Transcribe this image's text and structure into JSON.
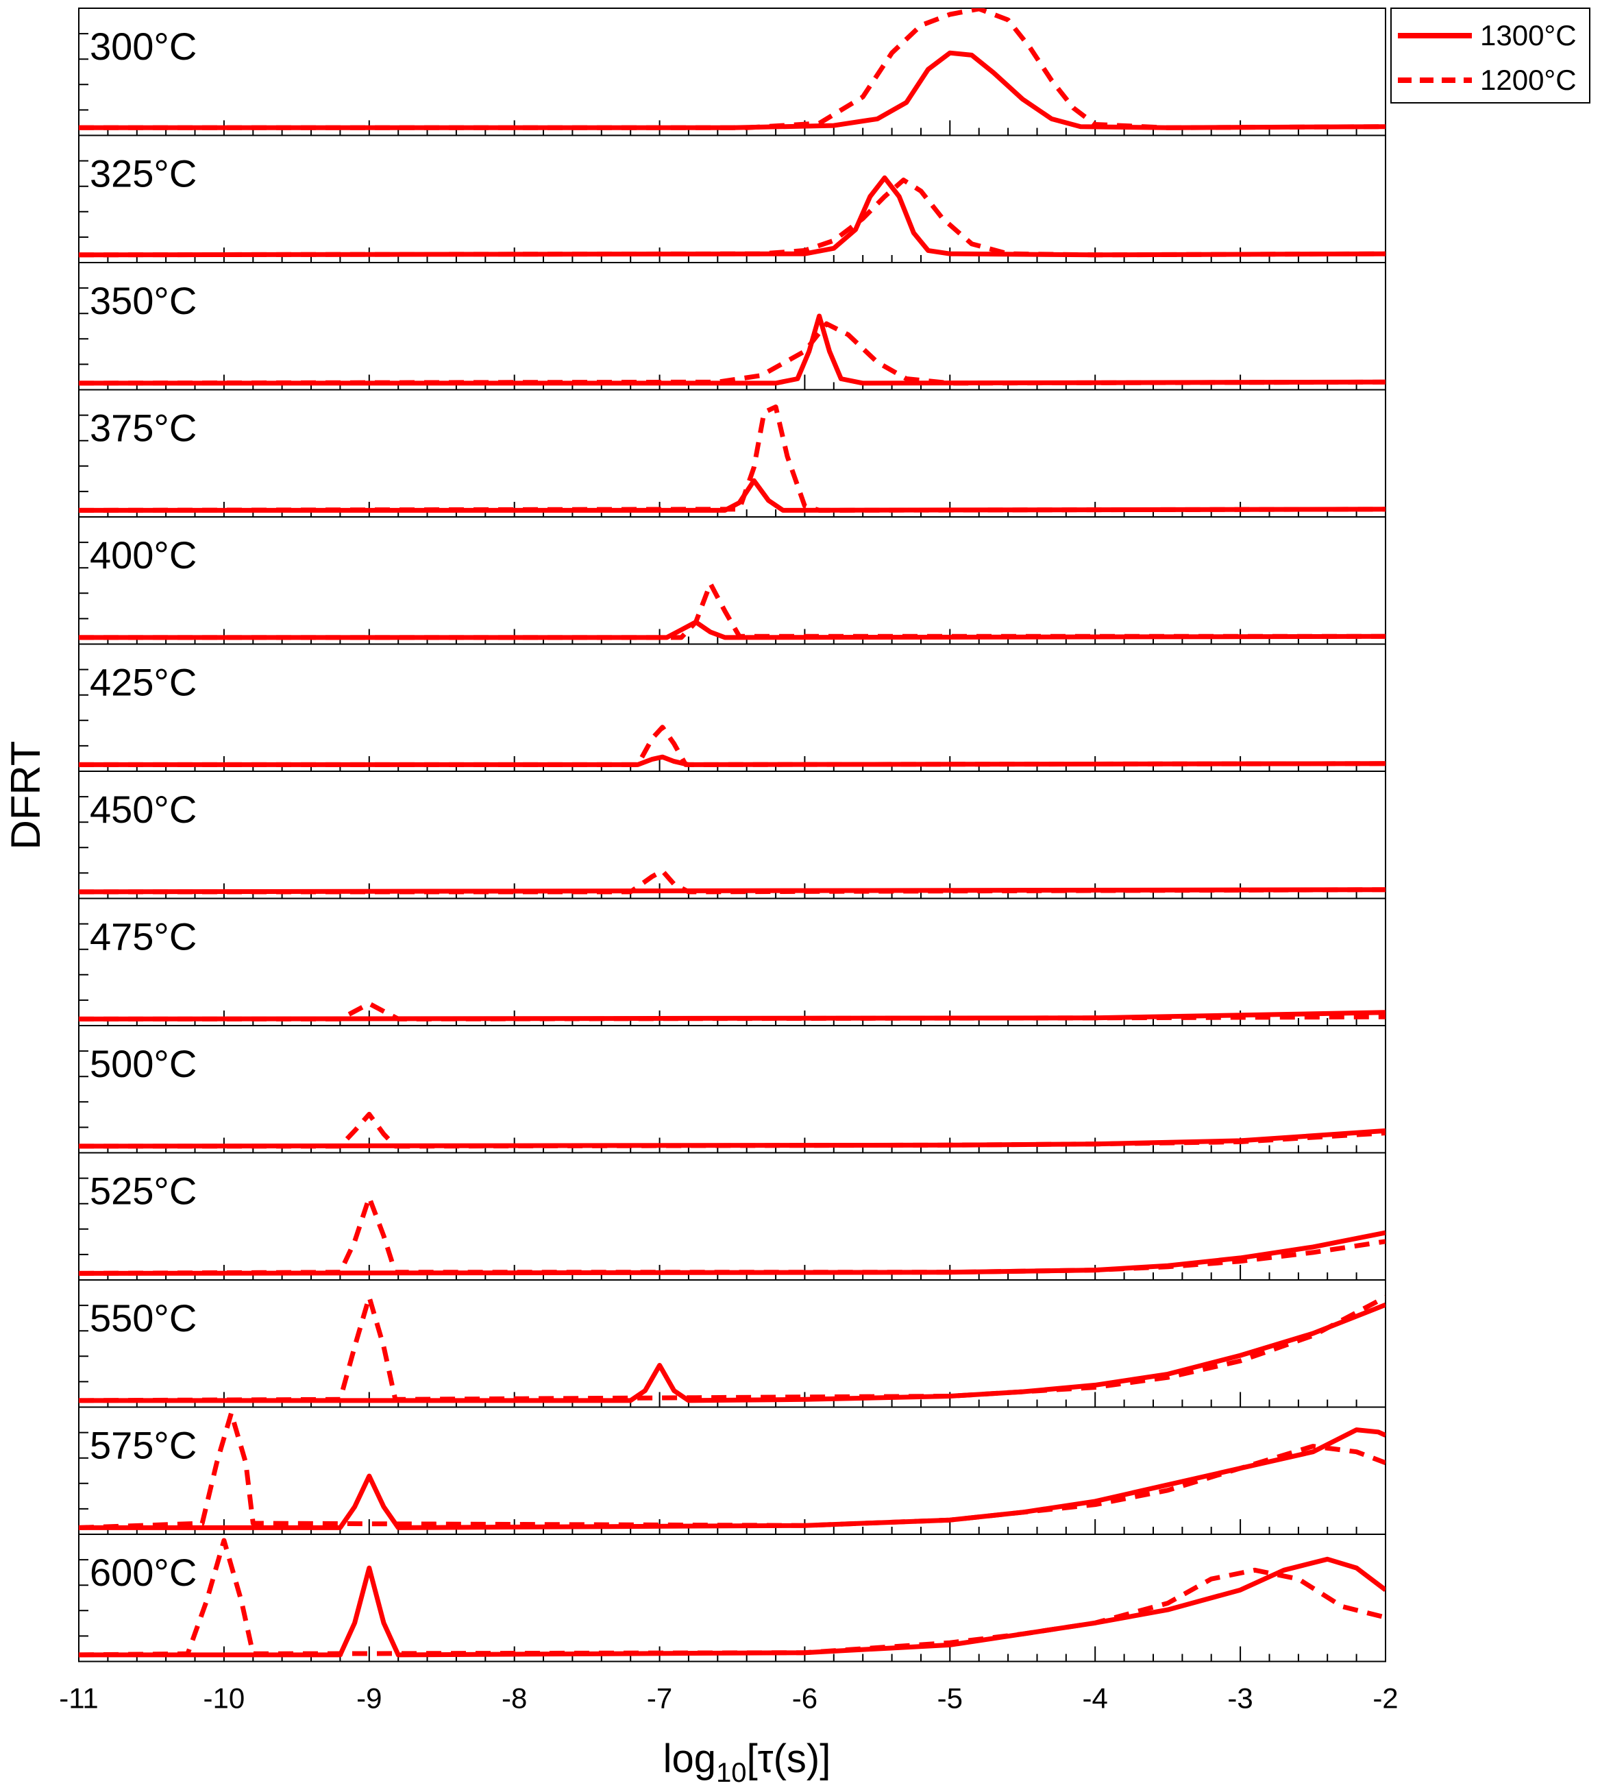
{
  "chart_data": {
    "type": "line",
    "ylabel": "DFRT",
    "xlabel_parts": {
      "base": "log",
      "sub": "10",
      "rest": "[τ(s)]"
    },
    "xlim": [
      -11,
      -2
    ],
    "x_ticks": [
      "-11",
      "-10",
      "-9",
      "-8",
      "-7",
      "-6",
      "-5",
      "-4",
      "-3",
      "-2"
    ],
    "legend": {
      "placement": "top-right, outside",
      "entries": [
        {
          "label": "1300°C",
          "style": "solid"
        },
        {
          "label": "1200°C",
          "style": "dashed"
        }
      ]
    },
    "line_color": "#ff0000",
    "series_styles": {
      "s1300": "solid",
      "s1200": "dashed"
    },
    "panels": [
      {
        "label": "300°C",
        "s1300": [
          [
            -11,
            0.02
          ],
          [
            -6.5,
            0.02
          ],
          [
            -5.8,
            0.04
          ],
          [
            -5.5,
            0.1
          ],
          [
            -5.3,
            0.25
          ],
          [
            -5.15,
            0.55
          ],
          [
            -5.0,
            0.7
          ],
          [
            -4.85,
            0.68
          ],
          [
            -4.7,
            0.52
          ],
          [
            -4.5,
            0.28
          ],
          [
            -4.3,
            0.1
          ],
          [
            -4.1,
            0.03
          ],
          [
            -3.5,
            0.02
          ],
          [
            -2,
            0.03
          ]
        ],
        "s1200": [
          [
            -11,
            0.02
          ],
          [
            -6.4,
            0.02
          ],
          [
            -5.9,
            0.06
          ],
          [
            -5.6,
            0.3
          ],
          [
            -5.4,
            0.7
          ],
          [
            -5.2,
            0.95
          ],
          [
            -5.0,
            1.05
          ],
          [
            -4.8,
            1.1
          ],
          [
            -4.6,
            1.0
          ],
          [
            -4.45,
            0.75
          ],
          [
            -4.3,
            0.45
          ],
          [
            -4.15,
            0.2
          ],
          [
            -4.0,
            0.05
          ],
          [
            -3.5,
            0.02
          ],
          [
            -2,
            0.03
          ]
        ]
      },
      {
        "label": "325°C",
        "s1300": [
          [
            -11,
            0.02
          ],
          [
            -6,
            0.03
          ],
          [
            -5.8,
            0.08
          ],
          [
            -5.65,
            0.25
          ],
          [
            -5.55,
            0.55
          ],
          [
            -5.45,
            0.72
          ],
          [
            -5.35,
            0.55
          ],
          [
            -5.25,
            0.22
          ],
          [
            -5.15,
            0.06
          ],
          [
            -5.0,
            0.03
          ],
          [
            -4,
            0.02
          ],
          [
            -2,
            0.03
          ]
        ],
        "s1200": [
          [
            -11,
            0.02
          ],
          [
            -6.3,
            0.03
          ],
          [
            -6.0,
            0.06
          ],
          [
            -5.8,
            0.15
          ],
          [
            -5.6,
            0.35
          ],
          [
            -5.45,
            0.55
          ],
          [
            -5.32,
            0.7
          ],
          [
            -5.2,
            0.6
          ],
          [
            -5.05,
            0.35
          ],
          [
            -4.85,
            0.12
          ],
          [
            -4.6,
            0.03
          ],
          [
            -4.0,
            0.02
          ],
          [
            -2,
            0.03
          ]
        ]
      },
      {
        "label": "350°C",
        "s1300": [
          [
            -11,
            0.01
          ],
          [
            -6.2,
            0.01
          ],
          [
            -6.05,
            0.05
          ],
          [
            -5.97,
            0.3
          ],
          [
            -5.9,
            0.62
          ],
          [
            -5.83,
            0.3
          ],
          [
            -5.75,
            0.05
          ],
          [
            -5.6,
            0.01
          ],
          [
            -2,
            0.02
          ]
        ],
        "s1200": [
          [
            -11,
            0.01
          ],
          [
            -6.6,
            0.02
          ],
          [
            -6.3,
            0.08
          ],
          [
            -6.0,
            0.3
          ],
          [
            -5.85,
            0.55
          ],
          [
            -5.7,
            0.45
          ],
          [
            -5.5,
            0.2
          ],
          [
            -5.3,
            0.05
          ],
          [
            -5.0,
            0.01
          ],
          [
            -2,
            0.02
          ]
        ]
      },
      {
        "label": "375°C",
        "s1300": [
          [
            -11,
            0.01
          ],
          [
            -6.55,
            0.01
          ],
          [
            -6.45,
            0.08
          ],
          [
            -6.35,
            0.28
          ],
          [
            -6.25,
            0.1
          ],
          [
            -6.15,
            0.01
          ],
          [
            -2,
            0.02
          ]
        ],
        "s1200": [
          [
            -11,
            0.01
          ],
          [
            -6.45,
            0.02
          ],
          [
            -6.35,
            0.4
          ],
          [
            -6.28,
            0.9
          ],
          [
            -6.2,
            0.95
          ],
          [
            -6.12,
            0.5
          ],
          [
            -6.0,
            0.05
          ],
          [
            -5.9,
            0.01
          ],
          [
            -2,
            0.02
          ]
        ]
      },
      {
        "label": "400°C",
        "s1300": [
          [
            -11,
            0.01
          ],
          [
            -6.95,
            0.01
          ],
          [
            -6.85,
            0.08
          ],
          [
            -6.75,
            0.15
          ],
          [
            -6.65,
            0.06
          ],
          [
            -6.55,
            0.01
          ],
          [
            -2,
            0.02
          ]
        ],
        "s1200": [
          [
            -11,
            0.01
          ],
          [
            -6.85,
            0.01
          ],
          [
            -6.75,
            0.15
          ],
          [
            -6.65,
            0.5
          ],
          [
            -6.55,
            0.25
          ],
          [
            -6.45,
            0.02
          ],
          [
            -2,
            0.02
          ]
        ]
      },
      {
        "label": "425°C",
        "s1300": [
          [
            -11,
            0.01
          ],
          [
            -7.15,
            0.01
          ],
          [
            -7.05,
            0.06
          ],
          [
            -6.98,
            0.08
          ],
          [
            -6.9,
            0.04
          ],
          [
            -6.8,
            0.01
          ],
          [
            -2,
            0.02
          ]
        ],
        "s1200": [
          [
            -11,
            0.01
          ],
          [
            -7.15,
            0.01
          ],
          [
            -7.05,
            0.25
          ],
          [
            -6.98,
            0.35
          ],
          [
            -6.9,
            0.2
          ],
          [
            -6.82,
            0.01
          ],
          [
            -2,
            0.02
          ]
        ]
      },
      {
        "label": "450°C",
        "s1300": [
          [
            -11,
            0.01
          ],
          [
            -2,
            0.03
          ]
        ],
        "s1200": [
          [
            -11,
            0.01
          ],
          [
            -7.2,
            0.01
          ],
          [
            -7.05,
            0.15
          ],
          [
            -6.98,
            0.2
          ],
          [
            -6.9,
            0.08
          ],
          [
            -6.8,
            0.01
          ],
          [
            -2,
            0.03
          ]
        ]
      },
      {
        "label": "475°C",
        "s1300": [
          [
            -11,
            0.01
          ],
          [
            -4,
            0.02
          ],
          [
            -2,
            0.07
          ]
        ],
        "s1200": [
          [
            -11,
            0.01
          ],
          [
            -9.2,
            0.01
          ],
          [
            -9.0,
            0.15
          ],
          [
            -8.9,
            0.08
          ],
          [
            -8.8,
            0.01
          ],
          [
            -4,
            0.02
          ],
          [
            -2,
            0.03
          ]
        ]
      },
      {
        "label": "500°C",
        "s1300": [
          [
            -11,
            0.01
          ],
          [
            -5,
            0.02
          ],
          [
            -4,
            0.03
          ],
          [
            -3,
            0.06
          ],
          [
            -2,
            0.15
          ]
        ],
        "s1200": [
          [
            -11,
            0.01
          ],
          [
            -9.2,
            0.01
          ],
          [
            -9.1,
            0.15
          ],
          [
            -9.0,
            0.3
          ],
          [
            -8.9,
            0.12
          ],
          [
            -8.82,
            0.01
          ],
          [
            -5,
            0.02
          ],
          [
            -4,
            0.03
          ],
          [
            -3,
            0.05
          ],
          [
            -2,
            0.13
          ]
        ]
      },
      {
        "label": "525°C",
        "s1300": [
          [
            -11,
            0.01
          ],
          [
            -5,
            0.02
          ],
          [
            -4,
            0.04
          ],
          [
            -3.5,
            0.08
          ],
          [
            -3,
            0.15
          ],
          [
            -2.5,
            0.25
          ],
          [
            -2,
            0.38
          ]
        ],
        "s1200": [
          [
            -11,
            0.01
          ],
          [
            -9.2,
            0.02
          ],
          [
            -9.1,
            0.3
          ],
          [
            -9.0,
            0.7
          ],
          [
            -8.9,
            0.35
          ],
          [
            -8.82,
            0.02
          ],
          [
            -5,
            0.02
          ],
          [
            -4,
            0.04
          ],
          [
            -3.5,
            0.07
          ],
          [
            -3,
            0.12
          ],
          [
            -2.5,
            0.2
          ],
          [
            -2,
            0.3
          ]
        ]
      },
      {
        "label": "550°C",
        "s1300": [
          [
            -11,
            0.01
          ],
          [
            -7.2,
            0.01
          ],
          [
            -7.1,
            0.1
          ],
          [
            -7.0,
            0.33
          ],
          [
            -6.9,
            0.1
          ],
          [
            -6.8,
            0.01
          ],
          [
            -6,
            0.02
          ],
          [
            -5,
            0.05
          ],
          [
            -4.5,
            0.09
          ],
          [
            -4,
            0.15
          ],
          [
            -3.5,
            0.25
          ],
          [
            -3,
            0.42
          ],
          [
            -2.5,
            0.62
          ],
          [
            -2,
            0.88
          ]
        ],
        "s1200": [
          [
            -11,
            0.01
          ],
          [
            -9.2,
            0.02
          ],
          [
            -9.1,
            0.5
          ],
          [
            -9.0,
            0.95
          ],
          [
            -8.9,
            0.5
          ],
          [
            -8.82,
            0.02
          ],
          [
            -5,
            0.05
          ],
          [
            -4,
            0.13
          ],
          [
            -3.5,
            0.22
          ],
          [
            -3,
            0.37
          ],
          [
            -2.5,
            0.6
          ],
          [
            -2,
            0.95
          ]
        ]
      },
      {
        "label": "575°C",
        "s1300": [
          [
            -11,
            0.01
          ],
          [
            -9.2,
            0.01
          ],
          [
            -9.1,
            0.2
          ],
          [
            -9.0,
            0.48
          ],
          [
            -8.9,
            0.2
          ],
          [
            -8.8,
            0.01
          ],
          [
            -6,
            0.03
          ],
          [
            -5,
            0.08
          ],
          [
            -4.5,
            0.15
          ],
          [
            -4,
            0.25
          ],
          [
            -3.5,
            0.4
          ],
          [
            -3,
            0.55
          ],
          [
            -2.5,
            0.7
          ],
          [
            -2.2,
            0.9
          ],
          [
            -2.05,
            0.88
          ],
          [
            -2,
            0.85
          ]
        ],
        "s1200": [
          [
            -11,
            0.01
          ],
          [
            -10.15,
            0.05
          ],
          [
            -10.05,
            0.6
          ],
          [
            -9.95,
            1.05
          ],
          [
            -9.85,
            0.6
          ],
          [
            -9.8,
            0.05
          ],
          [
            -6,
            0.03
          ],
          [
            -5,
            0.08
          ],
          [
            -4,
            0.22
          ],
          [
            -3.5,
            0.35
          ],
          [
            -3,
            0.55
          ],
          [
            -2.5,
            0.75
          ],
          [
            -2.2,
            0.7
          ],
          [
            -2,
            0.6
          ]
        ]
      },
      {
        "label": "600°C",
        "s1300": [
          [
            -11,
            0.01
          ],
          [
            -9.2,
            0.01
          ],
          [
            -9.1,
            0.3
          ],
          [
            -9.0,
            0.8
          ],
          [
            -8.9,
            0.3
          ],
          [
            -8.8,
            0.01
          ],
          [
            -6,
            0.03
          ],
          [
            -5,
            0.1
          ],
          [
            -4.5,
            0.2
          ],
          [
            -4,
            0.3
          ],
          [
            -3.5,
            0.42
          ],
          [
            -3,
            0.6
          ],
          [
            -2.7,
            0.78
          ],
          [
            -2.4,
            0.88
          ],
          [
            -2.2,
            0.8
          ],
          [
            -2,
            0.6
          ]
        ],
        "s1200": [
          [
            -11,
            0.01
          ],
          [
            -10.25,
            0.02
          ],
          [
            -10.12,
            0.5
          ],
          [
            -10.0,
            1.05
          ],
          [
            -9.88,
            0.5
          ],
          [
            -9.8,
            0.02
          ],
          [
            -6,
            0.03
          ],
          [
            -5,
            0.12
          ],
          [
            -4.5,
            0.2
          ],
          [
            -4,
            0.3
          ],
          [
            -3.5,
            0.48
          ],
          [
            -3.2,
            0.7
          ],
          [
            -2.9,
            0.78
          ],
          [
            -2.6,
            0.7
          ],
          [
            -2.3,
            0.45
          ],
          [
            -2,
            0.35
          ]
        ]
      }
    ]
  }
}
